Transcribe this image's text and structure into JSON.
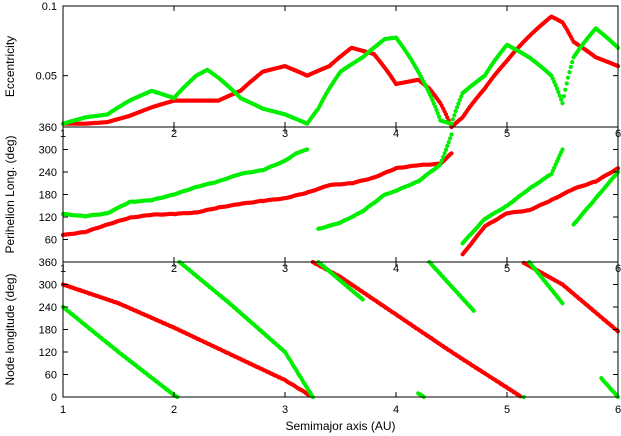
{
  "figure": {
    "xlabel": "Semimajor axis (AU)",
    "colors": {
      "series_a": "#ff0000",
      "series_b": "#00ee00",
      "axes": "#000000",
      "background": "#ffffff"
    }
  },
  "chart_data": [
    {
      "type": "scatter",
      "panel": "top",
      "title": "",
      "xlabel": "",
      "ylabel": "Eccentricity",
      "xlim": [
        1,
        6
      ],
      "ylim": [
        0.03,
        0.1
      ],
      "yscale": "log",
      "xticks": [
        1,
        2,
        3,
        4,
        5,
        6
      ],
      "yticks": [
        0.05,
        0.1
      ],
      "ytick_labels": [
        "0.05",
        "0.1"
      ],
      "grid": false,
      "series": [
        {
          "color": "#ff0000",
          "x": [
            1.0,
            1.2,
            1.4,
            1.6,
            1.8,
            2.0,
            2.2,
            2.4,
            2.6,
            2.8,
            3.0,
            3.2,
            3.4,
            3.6,
            3.8,
            4.0,
            4.2,
            4.3,
            4.4,
            4.5,
            4.6,
            4.8,
            5.0,
            5.2,
            5.4,
            5.5,
            5.6,
            5.8,
            6.0
          ],
          "y": [
            0.031,
            0.031,
            0.0315,
            0.0335,
            0.0365,
            0.039,
            0.039,
            0.039,
            0.043,
            0.052,
            0.055,
            0.05,
            0.055,
            0.066,
            0.062,
            0.046,
            0.048,
            0.044,
            0.038,
            0.03,
            0.033,
            0.044,
            0.058,
            0.074,
            0.09,
            0.085,
            0.07,
            0.06,
            0.055
          ]
        },
        {
          "color": "#00ee00",
          "x": [
            1.0,
            1.2,
            1.4,
            1.6,
            1.8,
            2.0,
            2.2,
            2.3,
            2.4,
            2.6,
            2.8,
            3.0,
            3.2,
            3.3,
            3.5,
            3.7,
            3.9,
            4.0,
            4.2,
            4.4,
            4.5,
            4.6,
            4.8,
            5.0,
            5.2,
            5.4,
            5.5,
            5.6,
            5.8,
            6.0
          ],
          "y": [
            0.031,
            0.033,
            0.034,
            0.039,
            0.043,
            0.04,
            0.05,
            0.053,
            0.049,
            0.04,
            0.036,
            0.034,
            0.031,
            0.036,
            0.052,
            0.06,
            0.072,
            0.073,
            0.052,
            0.032,
            0.031,
            0.042,
            0.05,
            0.068,
            0.06,
            0.05,
            0.038,
            0.06,
            0.08,
            0.066
          ]
        }
      ]
    },
    {
      "type": "scatter",
      "panel": "middle",
      "title": "",
      "xlabel": "",
      "ylabel": "Perihelion Long. (deg)",
      "xlim": [
        1,
        6
      ],
      "ylim": [
        0,
        360
      ],
      "xticks": [
        1,
        2,
        3,
        4,
        5,
        6
      ],
      "yticks": [
        60,
        120,
        180,
        240,
        300,
        360
      ],
      "grid": false,
      "series": [
        {
          "color": "#ff0000",
          "x": [
            1.0,
            1.2,
            1.4,
            1.6,
            1.8,
            2.0,
            2.2,
            2.4,
            2.6,
            2.8,
            3.0,
            3.2,
            3.4,
            3.6,
            3.8,
            4.0,
            4.2,
            4.4,
            4.5,
            4.6,
            4.8,
            5.0,
            5.2,
            5.4,
            5.6,
            5.8,
            6.0
          ],
          "y": [
            72,
            80,
            100,
            118,
            126,
            128,
            132,
            145,
            155,
            163,
            170,
            185,
            205,
            210,
            225,
            250,
            258,
            262,
            290,
            20,
            95,
            130,
            138,
            165,
            195,
            215,
            250
          ]
        },
        {
          "color": "#00ee00",
          "x": [
            1.0,
            1.2,
            1.4,
            1.6,
            1.8,
            2.0,
            2.2,
            2.4,
            2.6,
            2.8,
            3.0,
            3.1,
            3.2,
            3.3,
            3.5,
            3.7,
            3.9,
            4.0,
            4.2,
            4.4,
            4.5,
            4.6,
            4.8,
            5.0,
            5.2,
            5.4,
            5.5,
            5.6,
            5.8,
            6.0
          ],
          "y": [
            128,
            122,
            130,
            160,
            165,
            180,
            200,
            215,
            235,
            245,
            270,
            290,
            300,
            88,
            105,
            135,
            180,
            190,
            215,
            260,
            340,
            50,
            115,
            150,
            195,
            235,
            300,
            100,
            170,
            240
          ]
        }
      ]
    },
    {
      "type": "scatter",
      "panel": "bottom",
      "title": "",
      "xlabel": "Semimajor axis (AU)",
      "ylabel": "Node longitude (deg)",
      "xlim": [
        1,
        6
      ],
      "ylim": [
        0,
        360
      ],
      "xticks": [
        1,
        2,
        3,
        4,
        5,
        6
      ],
      "yticks": [
        0,
        60,
        120,
        180,
        240,
        300,
        360
      ],
      "grid": false,
      "series": [
        {
          "color": "#ff0000",
          "x": [
            1.0,
            1.5,
            2.0,
            2.5,
            3.0,
            3.22,
            3.25,
            3.5,
            4.0,
            4.5,
            5.0,
            5.12,
            5.15,
            5.5,
            6.0
          ],
          "y": [
            300,
            250,
            185,
            115,
            45,
            5,
            360,
            320,
            220,
            120,
            25,
            2,
            358,
            300,
            175
          ]
        },
        {
          "color": "#00ee00",
          "x": [
            1.0,
            1.5,
            2.0,
            2.03,
            2.05,
            2.5,
            3.0,
            3.25,
            3.3,
            3.7,
            4.2,
            4.25,
            4.3,
            4.7,
            5.15,
            5.2,
            5.5,
            5.85,
            6.0
          ],
          "y": [
            240,
            120,
            5,
            0,
            360,
            250,
            120,
            0,
            360,
            260,
            10,
            0,
            360,
            230,
            0,
            360,
            250,
            50,
            0
          ]
        }
      ]
    }
  ]
}
